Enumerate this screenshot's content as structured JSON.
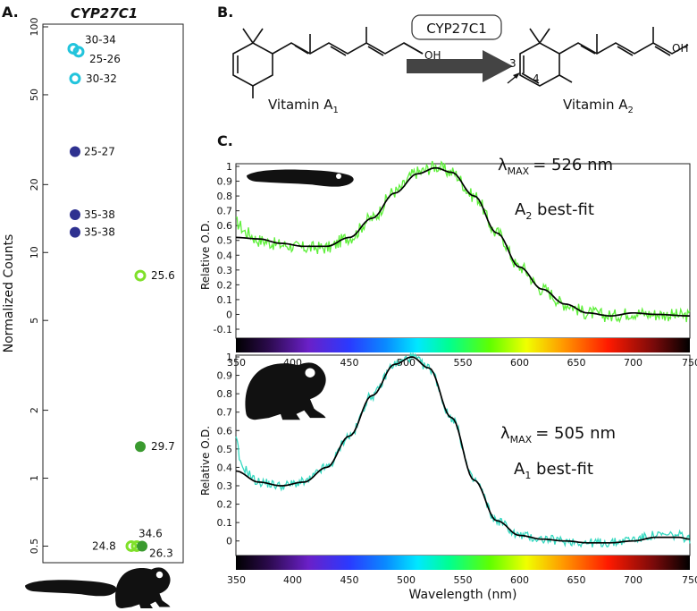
{
  "panel_a": {
    "letter": "A.",
    "title": "CYP27C1",
    "ylabel": "Normalized Counts",
    "colors": {
      "cyan": "#22c4dc",
      "navy": "#2e3190",
      "lime": "#7fe02a",
      "green": "#3a9a2f"
    },
    "silhouettes": [
      "tadpole-silhouette",
      "frog-silhouette"
    ]
  },
  "panel_b": {
    "letter": "B.",
    "enzyme": "CYP27C1",
    "left_label": "Vitamin A",
    "left_sub": "1",
    "right_label": "Vitamin A",
    "right_sub": "2",
    "oh_left": "OH",
    "oh_right": "OH",
    "pos3": "3",
    "pos4": "4"
  },
  "panel_c": {
    "letter": "C.",
    "top_lambda_sym": "λ",
    "top_lambda_sub": "MAX",
    "top_lambda_val": "= 526 nm",
    "top_fit_main": "A",
    "top_fit_sub": "2",
    "top_fit_rest": " best-fit",
    "bottom_lambda_sym": "λ",
    "bottom_lambda_sub": "MAX",
    "bottom_lambda_val": "= 505 nm",
    "bottom_fit_main": "A",
    "bottom_fit_sub": "1",
    "bottom_fit_rest": " best-fit",
    "xlabel": "Wavelength (nm)",
    "ylabel_top": "Relative O.D.",
    "ylabel_bottom": "Relative O.D.",
    "colors": {
      "data_top": "#5ef03a",
      "data_bottom": "#35d8c0",
      "fit": "#000000"
    }
  },
  "chart_data": [
    {
      "type": "scatter",
      "title": "CYP27C1",
      "ylabel": "Normalized Counts",
      "yscale": "log",
      "ylim": [
        0.45,
        100
      ],
      "yticks": [
        0.5,
        1,
        2,
        5,
        10,
        20,
        50,
        100
      ],
      "ytick_labels": [
        "0.5",
        "1",
        "2",
        "5",
        "10",
        "20",
        "50",
        "100"
      ],
      "categories": [
        "tadpole",
        "frog"
      ],
      "points": [
        {
          "group": "tadpole",
          "value": 80,
          "label": "30-34",
          "style": "ring",
          "color": "cyan"
        },
        {
          "group": "tadpole",
          "value": 79,
          "label": "25-26",
          "style": "ring",
          "color": "cyan"
        },
        {
          "group": "tadpole",
          "value": 59,
          "label": "30-32",
          "style": "ring",
          "color": "cyan"
        },
        {
          "group": "tadpole",
          "value": 28,
          "label": "25-27",
          "style": "filled",
          "color": "navy"
        },
        {
          "group": "tadpole",
          "value": 14.7,
          "label": "35-38",
          "style": "filled",
          "color": "navy"
        },
        {
          "group": "tadpole",
          "value": 12.3,
          "label": "35-38",
          "style": "filled",
          "color": "navy"
        },
        {
          "group": "frog",
          "value": 7.9,
          "label": "25.6",
          "style": "ring",
          "color": "lime"
        },
        {
          "group": "frog",
          "value": 1.38,
          "label": "29.7",
          "style": "filled",
          "color": "green"
        },
        {
          "group": "frog",
          "value": 0.5,
          "label": "34.6",
          "style": "ring",
          "color": "lime"
        },
        {
          "group": "frog",
          "value": 0.5,
          "label": "24.8",
          "style": "ring",
          "color": "lime"
        },
        {
          "group": "frog",
          "value": 0.5,
          "label": "26.3",
          "style": "filled",
          "color": "green"
        }
      ]
    },
    {
      "type": "line",
      "title": "Tadpole visual pigment spectrum",
      "xlabel": "Wavelength (nm)",
      "ylabel": "Relative O.D.",
      "xlim": [
        350,
        750
      ],
      "ylim": [
        -0.1,
        1
      ],
      "xticks": [
        350,
        400,
        450,
        500,
        550,
        600,
        650,
        700,
        750
      ],
      "yticks": [
        -0.1,
        0,
        0.1,
        0.2,
        0.3,
        0.4,
        0.5,
        0.6,
        0.7,
        0.8,
        0.9,
        1
      ],
      "ytick_labels": [
        "-0.1",
        "0",
        "0.1",
        "0.2",
        "0.3",
        "0.4",
        "0.5",
        "0.6",
        "0.7",
        "0.8",
        "0.9",
        "1"
      ],
      "lambda_max": 526,
      "fit_label": "A2 best-fit",
      "series": [
        {
          "name": "best-fit",
          "color": "fit",
          "x": [
            350,
            370,
            390,
            410,
            430,
            450,
            470,
            490,
            510,
            526,
            540,
            560,
            580,
            600,
            620,
            640,
            660,
            680,
            700,
            720,
            750
          ],
          "values": [
            0.52,
            0.51,
            0.48,
            0.46,
            0.46,
            0.52,
            0.65,
            0.82,
            0.95,
            0.99,
            0.96,
            0.8,
            0.55,
            0.32,
            0.17,
            0.07,
            0.01,
            -0.01,
            0.01,
            0.0,
            -0.01
          ]
        },
        {
          "name": "data",
          "color": "data_top",
          "noise": 0.045,
          "x": [
            350,
            360,
            370,
            390,
            410,
            430,
            450,
            470,
            490,
            510,
            526,
            540,
            560,
            580,
            600,
            620,
            640,
            660,
            680,
            700,
            720,
            750
          ],
          "values": [
            0.62,
            0.55,
            0.5,
            0.47,
            0.45,
            0.45,
            0.52,
            0.65,
            0.83,
            0.96,
            1.0,
            0.96,
            0.8,
            0.55,
            0.32,
            0.17,
            0.07,
            0.01,
            -0.01,
            0.01,
            0.0,
            -0.01
          ]
        }
      ]
    },
    {
      "type": "line",
      "title": "Frog visual pigment spectrum",
      "xlabel": "Wavelength (nm)",
      "ylabel": "Relative O.D.",
      "xlim": [
        350,
        750
      ],
      "ylim": [
        -0.05,
        1
      ],
      "xticks": [
        350,
        400,
        450,
        500,
        550,
        600,
        650,
        700,
        750
      ],
      "yticks": [
        0,
        0.1,
        0.2,
        0.3,
        0.4,
        0.5,
        0.6,
        0.7,
        0.8,
        0.9,
        1
      ],
      "ytick_labels": [
        "0",
        "0.1",
        "0.2",
        "0.3",
        "0.4",
        "0.5",
        "0.6",
        "0.7",
        "0.8",
        "0.9",
        "1"
      ],
      "lambda_max": 505,
      "fit_label": "A1 best-fit",
      "series": [
        {
          "name": "best-fit",
          "color": "fit",
          "x": [
            350,
            370,
            390,
            410,
            430,
            450,
            470,
            490,
            505,
            520,
            540,
            560,
            580,
            600,
            620,
            640,
            660,
            680,
            700,
            720,
            740,
            750
          ],
          "values": [
            0.38,
            0.32,
            0.3,
            0.32,
            0.4,
            0.57,
            0.79,
            0.96,
            1.0,
            0.94,
            0.67,
            0.33,
            0.11,
            0.03,
            0.01,
            0.0,
            -0.01,
            -0.01,
            0.0,
            0.02,
            0.02,
            0.01
          ]
        },
        {
          "name": "data",
          "color": "data_bottom",
          "noise": 0.025,
          "x": [
            350,
            355,
            370,
            390,
            410,
            430,
            450,
            470,
            490,
            505,
            520,
            540,
            560,
            580,
            600,
            620,
            640,
            660,
            680,
            700,
            720,
            740,
            750
          ],
          "values": [
            0.55,
            0.4,
            0.32,
            0.3,
            0.32,
            0.4,
            0.57,
            0.79,
            0.96,
            1.0,
            0.94,
            0.67,
            0.33,
            0.11,
            0.03,
            0.01,
            0.0,
            -0.01,
            -0.01,
            0.01,
            0.03,
            0.03,
            0.01
          ]
        }
      ]
    }
  ]
}
